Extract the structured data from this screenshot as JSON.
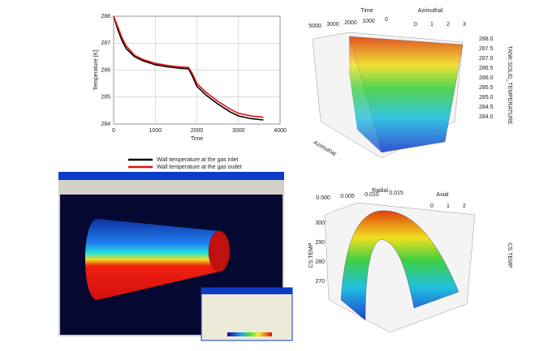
{
  "chart_data": {
    "type": "line",
    "xlabel": "Time",
    "ylabel": "Temperature [K]",
    "x": [
      0,
      100,
      200,
      300,
      500,
      700,
      1000,
      1300,
      1600,
      1800,
      1900,
      2000,
      2200,
      2500,
      2800,
      3000,
      3300,
      3600
    ],
    "series": [
      {
        "name": "Wall temperature at the gas inlet",
        "color": "#000000",
        "values": [
          288,
          287.5,
          287.1,
          286.8,
          286.5,
          286.35,
          286.2,
          286.12,
          286.07,
          286.05,
          285.75,
          285.4,
          285.1,
          284.75,
          284.45,
          284.3,
          284.2,
          284.15
        ]
      },
      {
        "name": "Wall temperature at the gas outlet",
        "color": "#e01010",
        "values": [
          288,
          287.6,
          287.2,
          286.9,
          286.55,
          286.4,
          286.25,
          286.17,
          286.12,
          286.1,
          285.85,
          285.5,
          285.2,
          284.85,
          284.55,
          284.4,
          284.3,
          284.25
        ]
      }
    ],
    "xlim": [
      0,
      4000
    ],
    "xticks": [
      0,
      1000,
      2000,
      3000,
      4000
    ],
    "ylim": [
      284,
      288
    ],
    "yticks": [
      284,
      285,
      286,
      287,
      288
    ],
    "grid": true
  },
  "surface_top": {
    "axis_time": "Time",
    "axis_azimuthal": "Azimuthal",
    "axis_value": "TANK:SOLID_TEMPERATURE",
    "axis_bottom": "Azimuthal",
    "time_ticks": [
      "5000",
      "3000",
      "2000",
      "1000",
      "0"
    ],
    "azimuthal_ticks": [
      "0",
      "1",
      "2",
      "3"
    ],
    "value_ticks": [
      "288.0",
      "287.5",
      "287.0",
      "286.5",
      "286.0",
      "285.5",
      "285.0",
      "284.5",
      "284.0"
    ]
  },
  "surface_bottom": {
    "axis_radial": "Radial",
    "axis_axial": "Axial",
    "axis_value": "CS.TEMP",
    "radial_ticks": [
      "0.000",
      "0.005",
      "0.010",
      "0.015"
    ],
    "axial_ticks": [
      "0",
      "1",
      "2"
    ],
    "value_ticks": [
      "300",
      "290",
      "280",
      "270"
    ]
  }
}
